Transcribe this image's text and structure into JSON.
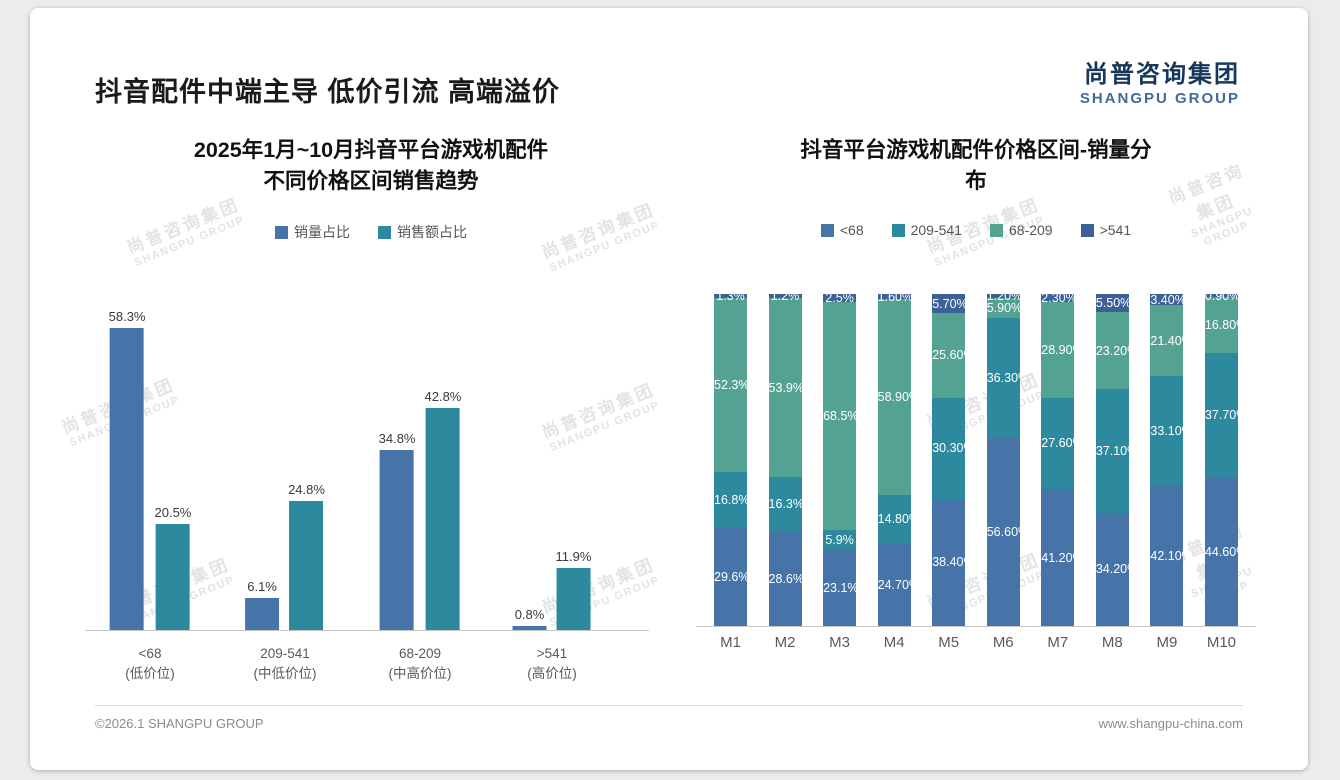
{
  "page": {
    "title": "抖音配件中端主导 低价引流 高端溢价",
    "footer_left": "©2026.1 SHANGPU GROUP",
    "footer_right": "www.shangpu-china.com"
  },
  "logo": {
    "cn": "尚普咨询集团",
    "en": "SHANGPU GROUP"
  },
  "watermark": {
    "cn": "尚普咨询集团",
    "en": "SHANGPU GROUP"
  },
  "colors": {
    "volume_blue": "#4774a8",
    "teal": "#2d8a9e",
    "green": "#54a392",
    "navy": "#3d6097",
    "title_text": "#1a1a1a",
    "logo_navy": "#16365c",
    "logo_blue": "#41699c"
  },
  "chart_data": [
    {
      "type": "bar",
      "title": "2025年1月~10月抖音平台游戏机配件 不同价格区间销售趋势",
      "title_lines": [
        "2025年1月~10月抖音平台游戏机配件",
        "不同价格区间销售趋势"
      ],
      "legend_position": "top",
      "grid": false,
      "ylim": [
        0,
        64
      ],
      "categories": [
        [
          "<68",
          "(低价位)"
        ],
        [
          "209-541",
          "(中低价位)"
        ],
        [
          "68-209",
          "(中高价位)"
        ],
        [
          ">541",
          "(高价位)"
        ]
      ],
      "series": [
        {
          "name": "销量占比",
          "color": "#4774a8",
          "values": [
            58.3,
            6.1,
            34.8,
            0.8
          ],
          "labels": [
            "58.3%",
            "6.1%",
            "34.8%",
            "0.8%"
          ]
        },
        {
          "name": "销售额占比",
          "color": "#2d8a9e",
          "values": [
            20.5,
            24.8,
            42.8,
            11.9
          ],
          "labels": [
            "20.5%",
            "24.8%",
            "42.8%",
            "11.9%"
          ]
        }
      ]
    },
    {
      "type": "bar-stacked-100",
      "title": "抖音平台游戏机配件价格区间-销量分布",
      "title_lines": [
        "抖音平台游戏机配件价格区间-销量分",
        "布"
      ],
      "legend_position": "top",
      "grid": false,
      "ylim": [
        0,
        100
      ],
      "categories": [
        "M1",
        "M2",
        "M3",
        "M4",
        "M5",
        "M6",
        "M7",
        "M8",
        "M9",
        "M10"
      ],
      "series": [
        {
          "name": "<68",
          "color": "#4774a8",
          "values": [
            29.6,
            28.6,
            23.1,
            24.7,
            38.4,
            56.6,
            41.2,
            34.2,
            42.1,
            44.6
          ],
          "labels": [
            "29.6%",
            "28.6%",
            "23.1%",
            "24.70%",
            "38.40%",
            "56.60%",
            "41.20%",
            "34.20%",
            "42.10%",
            "44.60%"
          ]
        },
        {
          "name": "209-541",
          "color": "#2d8a9e",
          "values": [
            16.8,
            16.3,
            5.9,
            14.8,
            30.3,
            36.3,
            27.6,
            37.1,
            33.1,
            37.7
          ],
          "labels": [
            "16.8%",
            "16.3%",
            "5.9%",
            "14.80%",
            "30.30%",
            "36.30%",
            "27.60%",
            "37.10%",
            "33.10%",
            "37.70%"
          ]
        },
        {
          "name": "68-209",
          "color": "#54a392",
          "values": [
            52.3,
            53.9,
            68.5,
            58.9,
            25.6,
            5.9,
            28.9,
            23.2,
            21.4,
            16.8
          ],
          "labels": [
            "52.3%",
            "53.9%",
            "68.5%",
            "58.90%",
            "25.60%",
            "5.90%",
            "28.90%",
            "23.20%",
            "21.40%",
            "16.80%"
          ]
        },
        {
          "name": ">541",
          "color": "#3d6097",
          "values": [
            1.3,
            1.2,
            2.5,
            1.6,
            5.7,
            1.2,
            2.3,
            5.5,
            3.4,
            0.9
          ],
          "labels": [
            "1.3%",
            "1.2%",
            "2.5%",
            "1.60%",
            "5.70%",
            "1.20%",
            "2.30%",
            "5.50%",
            "3.40%",
            "0.90%"
          ]
        }
      ]
    }
  ]
}
